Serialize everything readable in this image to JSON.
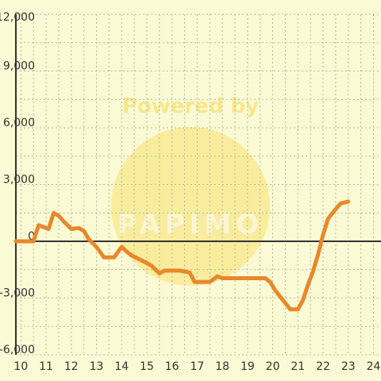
{
  "chart_data": {
    "type": "line",
    "title": "",
    "xlabel": "",
    "ylabel": "",
    "xlim": [
      9.8,
      24.3
    ],
    "ylim": [
      -6000,
      12000
    ],
    "x_ticks": [
      10,
      11,
      12,
      13,
      14,
      15,
      16,
      17,
      18,
      19,
      20,
      21,
      22,
      23,
      24
    ],
    "x_tick_labels": [
      "10",
      "11",
      "12",
      "13",
      "14",
      "15",
      "16",
      "17",
      "18",
      "19",
      "20",
      "21",
      "22",
      "23",
      "24"
    ],
    "y_ticks": [
      -6000,
      -3000,
      0,
      3000,
      6000,
      9000,
      12000
    ],
    "y_tick_labels": [
      "-6,000",
      "-3,000",
      "0",
      "3,000",
      "6,000",
      "9,000",
      "12,000"
    ],
    "grid": true,
    "watermark": {
      "line1": "Powered by",
      "line2": "PAPIMO"
    },
    "colors": {
      "background": "#fafad4",
      "grid": "#b8b8a0",
      "axis": "#333333",
      "line": "#e8882a",
      "watermark": "#f8dc5a"
    },
    "series": [
      {
        "name": "",
        "x": [
          9.8,
          10.5,
          10.7,
          11.1,
          11.3,
          11.5,
          11.7,
          12.0,
          12.3,
          12.5,
          12.7,
          13.0,
          13.3,
          13.7,
          14.0,
          14.2,
          14.4,
          14.7,
          15.0,
          15.2,
          15.5,
          15.7,
          15.9,
          16.3,
          16.7,
          16.9,
          17.2,
          17.5,
          17.8,
          18.0,
          18.3,
          18.7,
          19.3,
          19.7,
          19.9,
          20.1,
          20.4,
          20.7,
          21.0,
          21.2,
          21.4,
          21.6,
          21.8,
          22.0,
          22.2,
          22.5,
          22.7,
          23.0
        ],
        "y": [
          0,
          0,
          850,
          650,
          1500,
          1350,
          1050,
          650,
          700,
          550,
          100,
          -300,
          -850,
          -850,
          -300,
          -550,
          -750,
          -950,
          -1150,
          -1300,
          -1700,
          -1550,
          -1550,
          -1550,
          -1650,
          -2150,
          -2150,
          -2150,
          -1850,
          -1950,
          -1950,
          -1950,
          -1950,
          -1950,
          -2150,
          -2600,
          -3100,
          -3600,
          -3600,
          -3100,
          -2300,
          -1600,
          -700,
          350,
          1200,
          1700,
          2000,
          2100
        ]
      }
    ]
  }
}
